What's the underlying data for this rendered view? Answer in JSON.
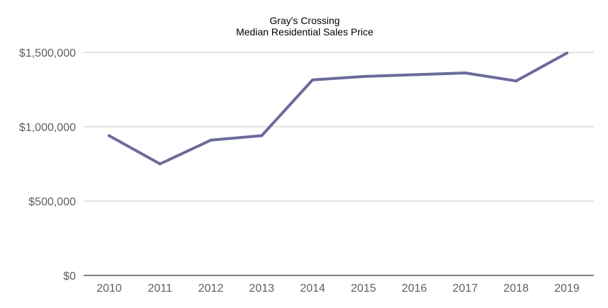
{
  "chart_data": {
    "type": "line",
    "title": "Gray's Crossing",
    "subtitle": "Median Residential Sales Price",
    "x": [
      "2010",
      "2011",
      "2012",
      "2013",
      "2014",
      "2015",
      "2016",
      "2017",
      "2018",
      "2019"
    ],
    "series": [
      {
        "values": [
          940000,
          750000,
          910000,
          940000,
          1315000,
          1338000,
          1350000,
          1362000,
          1308000,
          1495000
        ]
      }
    ],
    "y_ticks": [
      "$0",
      "$500,000",
      "$1,000,000",
      "$1,500,000"
    ],
    "ylim": [
      0,
      1500000
    ],
    "grid": true,
    "legend": "none",
    "line_color": "#6b6b9d",
    "grid_color": "#c6c6c6",
    "baseline_color": "#333333"
  }
}
